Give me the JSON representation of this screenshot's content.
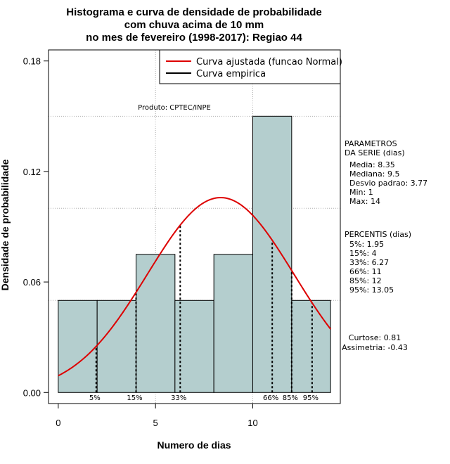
{
  "chart_data": {
    "type": "histogram",
    "title_lines": [
      "Histograma e curva de densidade de probabilidade",
      "com chuva acima de 10 mm",
      "no mes de fevereiro (1998-2017): Regiao 44"
    ],
    "xlabel": "Numero de dias",
    "ylabel": "Densidade de probabilidade",
    "xlim": [
      -0.5,
      14.5
    ],
    "ylim": [
      -0.006,
      0.186
    ],
    "x_ticks": [
      0,
      5,
      10
    ],
    "x_tick_labels": [
      "0",
      "5",
      "10"
    ],
    "y_ticks": [
      0.0,
      0.06,
      0.12,
      0.18
    ],
    "y_tick_labels": [
      "0.00",
      "0.06",
      "0.12",
      "0.18"
    ],
    "grid_y": [
      0.05,
      0.1,
      0.15
    ],
    "grid_x": [
      5,
      10
    ],
    "bins": [
      {
        "x0": 0,
        "x1": 2,
        "density": 0.05
      },
      {
        "x0": 2,
        "x1": 4,
        "density": 0.05
      },
      {
        "x0": 4,
        "x1": 6,
        "density": 0.075
      },
      {
        "x0": 6,
        "x1": 8,
        "density": 0.05
      },
      {
        "x0": 8,
        "x1": 10,
        "density": 0.075
      },
      {
        "x0": 10,
        "x1": 12,
        "density": 0.15
      },
      {
        "x0": 12,
        "x1": 14,
        "density": 0.05
      }
    ],
    "bar_color": "#b4cece",
    "normal_curve": {
      "mean": 8.35,
      "sd": 3.77,
      "color": "#dd0000"
    },
    "percentile_lines": [
      {
        "label": "5%",
        "x": 1.95
      },
      {
        "label": "15%",
        "x": 4
      },
      {
        "label": "33%",
        "x": 6.27
      },
      {
        "label": "66%",
        "x": 11
      },
      {
        "label": "85%",
        "x": 12
      },
      {
        "label": "95%",
        "x": 13.05
      }
    ],
    "legend": {
      "position": "top-right",
      "entries": [
        {
          "label": "Curva ajustada (funcao Normal)",
          "color": "#dd0000"
        },
        {
          "label": "Curva empirica",
          "color": "#000000"
        }
      ]
    },
    "annotation": "Produto: CPTEC/INPE",
    "parametros": {
      "header": [
        "PARAMETROS",
        "DA SERIE (dias)"
      ],
      "items": [
        "Media: 8.35",
        "Mediana: 9.5",
        "Desvio padrao: 3.77",
        "Min: 1",
        "Max: 14"
      ]
    },
    "percentis": {
      "header": "PERCENTIS (dias)",
      "items": [
        "5%: 1.95",
        "15%: 4",
        "33%: 6.27",
        "66%: 11",
        "85%: 12",
        "95%: 13.05"
      ]
    },
    "shape_stats": [
      "Curtose: 0.81",
      "Assimetria: -0.43"
    ]
  }
}
